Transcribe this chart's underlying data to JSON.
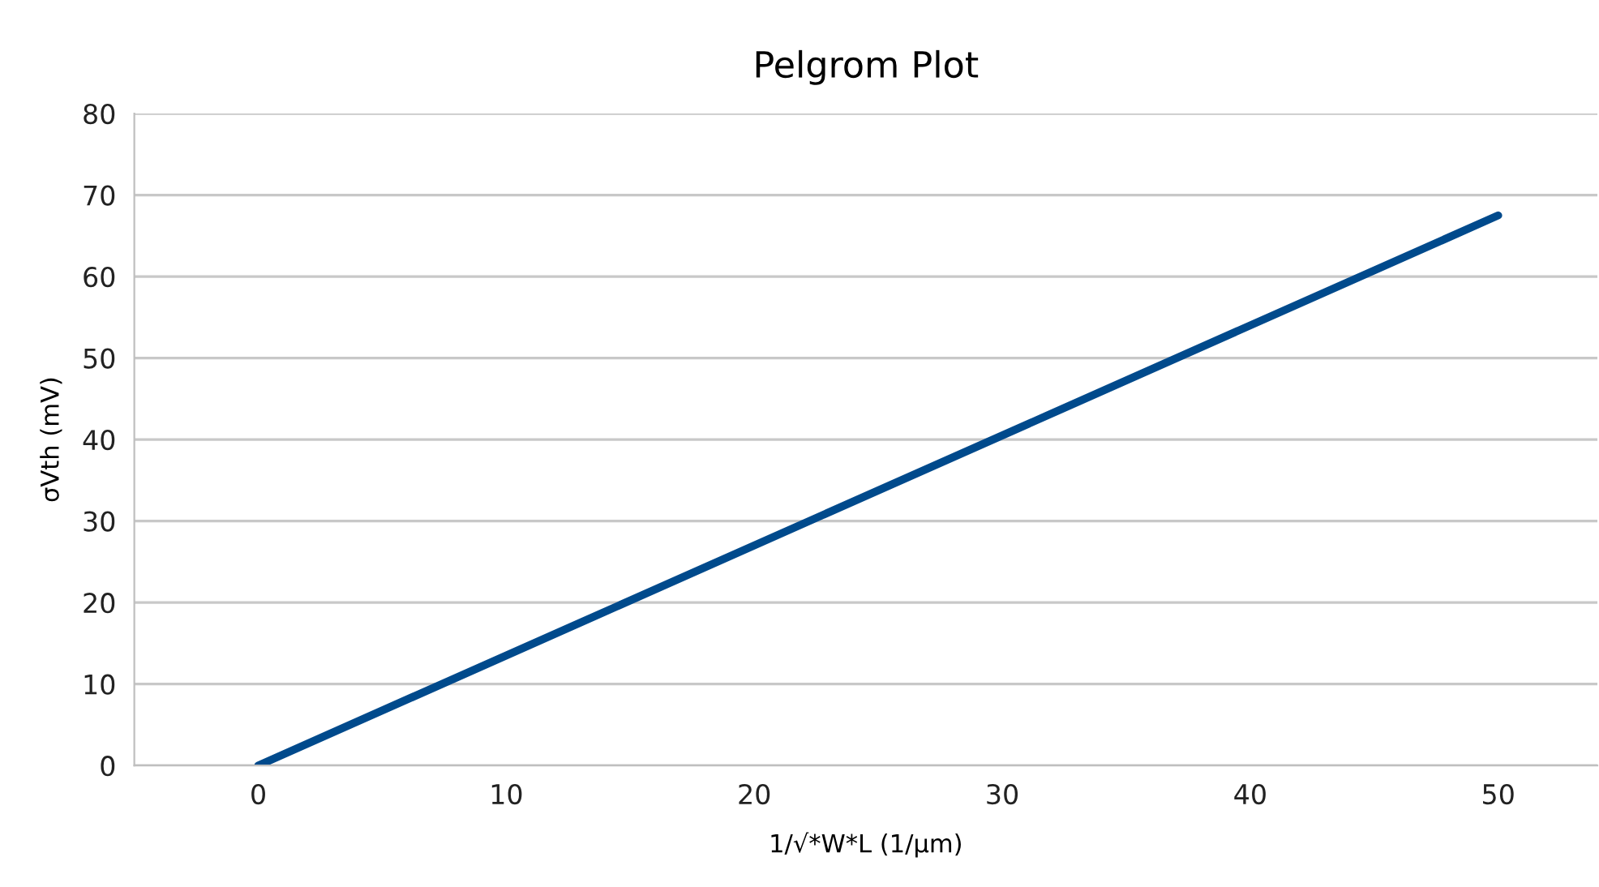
{
  "chart_data": {
    "type": "line",
    "title": "Pelgrom Plot",
    "xlabel": "1/√*W*L (1/µm)",
    "ylabel": "σVth (mV)",
    "x": [
      0,
      50
    ],
    "series": [
      {
        "color": "#004a8c",
        "values": [
          0,
          67.5
        ]
      }
    ],
    "xlim": [
      -5,
      54
    ],
    "xticks": [
      0,
      10,
      20,
      30,
      40,
      50
    ],
    "ylim": [
      0,
      80
    ],
    "yticks": [
      0,
      10,
      20,
      30,
      40,
      50,
      60,
      70,
      80
    ],
    "grid": "y",
    "legend": false,
    "marker": "none",
    "line_style": "solid"
  }
}
